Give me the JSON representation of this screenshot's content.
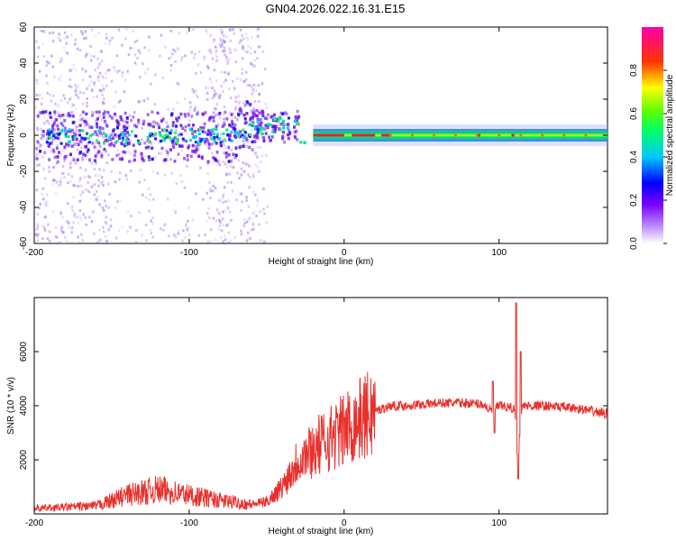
{
  "title": "GN04.2026.022.16.31.E15",
  "colors": {
    "snr_line": "#e8302c",
    "spectrogram_band": "#7b2cf0",
    "spectrogram_peak": "#e5194d",
    "spectrogram_ridge": "#2edc3a",
    "background": "#ffffff"
  },
  "chart_data": [
    {
      "type": "heatmap",
      "title": "GN04.2026.022.16.31.E15",
      "xlabel": "Height of straight line (km)",
      "ylabel": "Frequency (Hz)",
      "xlim": [
        -200,
        170
      ],
      "ylim": [
        -60,
        60
      ],
      "x_ticks": [
        -200,
        -100,
        0,
        100
      ],
      "y_ticks": [
        -60,
        -40,
        -20,
        0,
        20,
        40,
        60
      ],
      "colorbar": {
        "label": "Normalized spectral amplitude",
        "range": [
          0,
          1
        ],
        "ticks": [
          "0.0",
          "0.2",
          "0.4",
          "0.6",
          "0.8"
        ],
        "colormap": [
          "#ffffff",
          "#7b00ff",
          "#0000ff",
          "#00c8ff",
          "#00ff00",
          "#ffff00",
          "#ff0000",
          "#ff00aa"
        ]
      },
      "ridge": [
        {
          "x": -200,
          "freq": 0,
          "amp": 0.2
        },
        {
          "x": -150,
          "freq": 0,
          "amp": 0.25
        },
        {
          "x": -100,
          "freq": 2,
          "amp": 0.3
        },
        {
          "x": -60,
          "freq": 8,
          "amp": 0.35
        },
        {
          "x": -40,
          "freq": 10,
          "amp": 0.3
        },
        {
          "x": -20,
          "freq": 1,
          "amp": 0.55
        },
        {
          "x": 0,
          "freq": 0,
          "amp": 0.9
        },
        {
          "x": 50,
          "freq": 0,
          "amp": 0.65
        },
        {
          "x": 100,
          "freq": 0,
          "amp": 0.6
        },
        {
          "x": 170,
          "freq": 0,
          "amp": 0.5
        }
      ]
    },
    {
      "type": "line",
      "xlabel": "Height of straight line (km)",
      "ylabel": "SNR (10 * v/v)",
      "xlim": [
        -200,
        170
      ],
      "ylim": [
        0,
        8000
      ],
      "x_ticks": [
        -200,
        -100,
        0,
        100
      ],
      "y_ticks": [
        2000,
        4000,
        6000
      ],
      "x": [
        -200,
        -180,
        -160,
        -140,
        -120,
        -100,
        -80,
        -60,
        -50,
        -40,
        -30,
        -20,
        -10,
        0,
        10,
        20,
        30,
        40,
        50,
        60,
        70,
        80,
        90,
        95,
        100,
        110,
        112,
        115,
        120,
        130,
        140,
        150,
        160,
        170
      ],
      "y": [
        200,
        250,
        300,
        700,
        900,
        700,
        500,
        350,
        450,
        1000,
        2000,
        2400,
        2800,
        3100,
        3500,
        3800,
        4000,
        4000,
        4050,
        4100,
        4100,
        4100,
        4050,
        3800,
        4000,
        3900,
        2000,
        4000,
        4000,
        4000,
        3950,
        3900,
        3800,
        3700
      ]
    }
  ]
}
